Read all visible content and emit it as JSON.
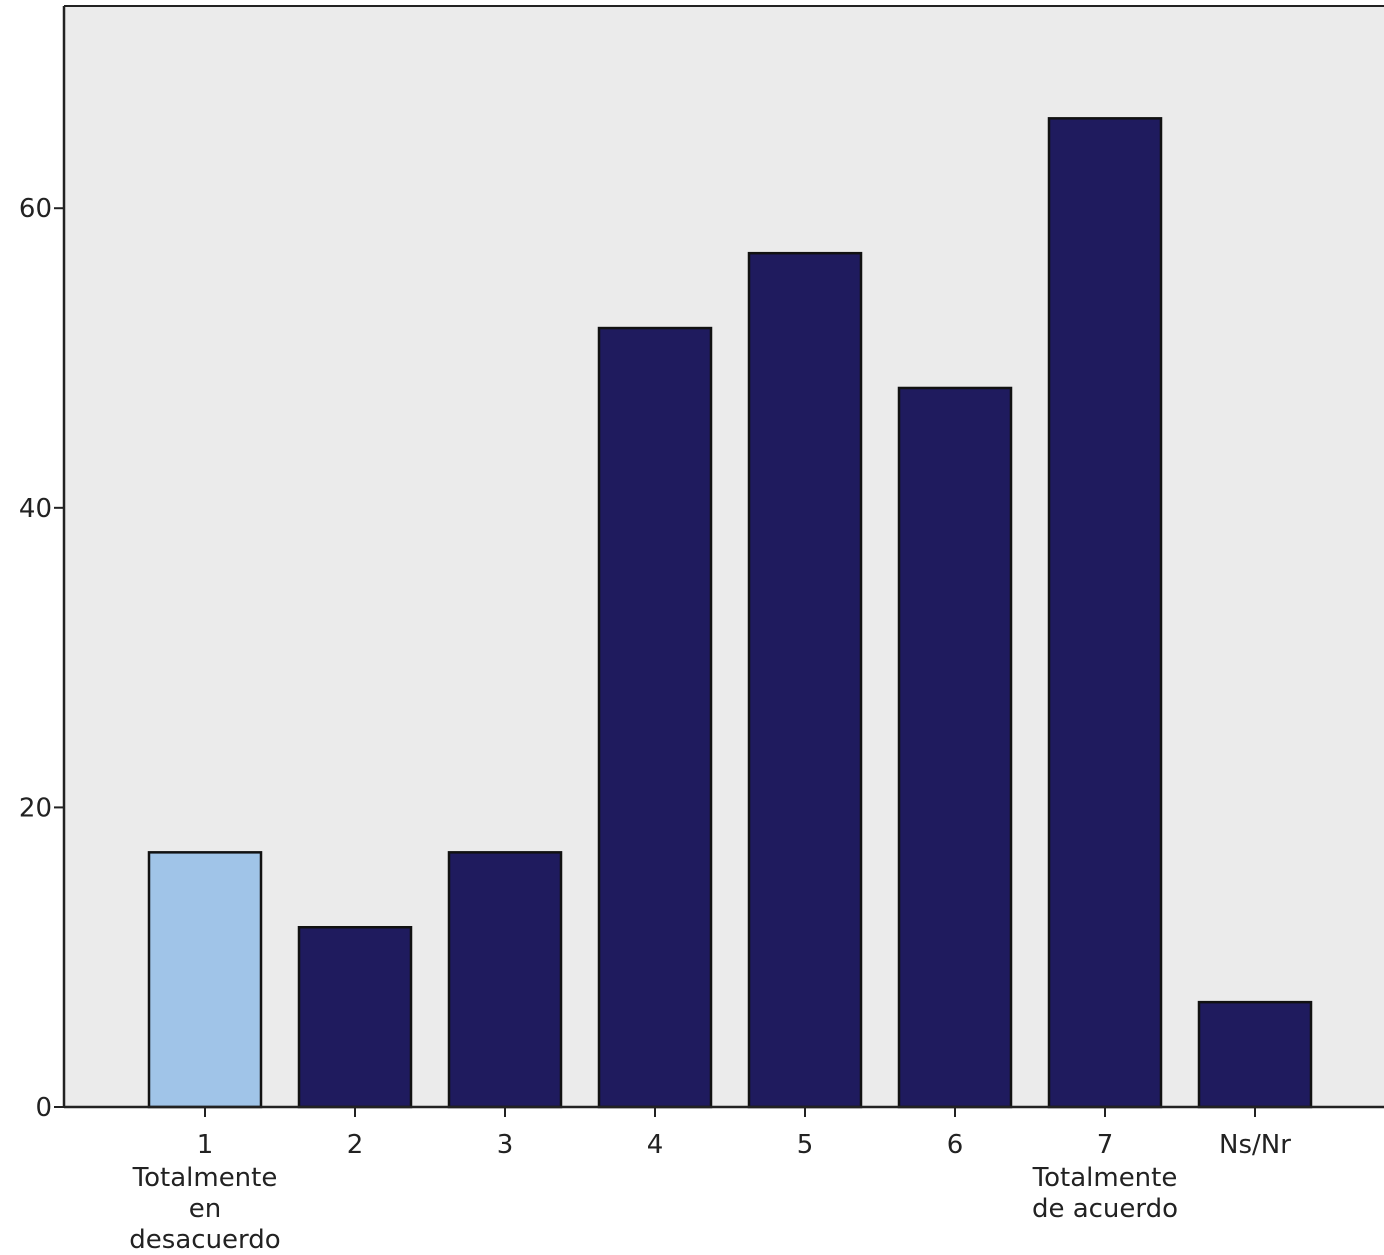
{
  "chart_data": {
    "type": "bar",
    "categories": [
      "1",
      "2",
      "3",
      "4",
      "5",
      "6",
      "7",
      "Ns/Nr"
    ],
    "category_sublabels": [
      [
        "Totalmente",
        "en",
        "desacuerdo"
      ],
      [],
      [],
      [],
      [],
      [],
      [
        "Totalmente",
        "de acuerdo"
      ],
      []
    ],
    "values": [
      17,
      12,
      17,
      52,
      57,
      48,
      66,
      7
    ],
    "bar_colors": [
      "#a0c4e8",
      "#1f1b5e",
      "#1f1b5e",
      "#1f1b5e",
      "#1f1b5e",
      "#1f1b5e",
      "#1f1b5e",
      "#1f1b5e"
    ],
    "plot_background": "#ebebeb",
    "title": "",
    "xlabel": "",
    "ylabel": "",
    "ylim": [
      0,
      73.5
    ],
    "yticks": [
      0,
      20,
      40,
      60
    ],
    "grid": false,
    "legend": "none"
  }
}
